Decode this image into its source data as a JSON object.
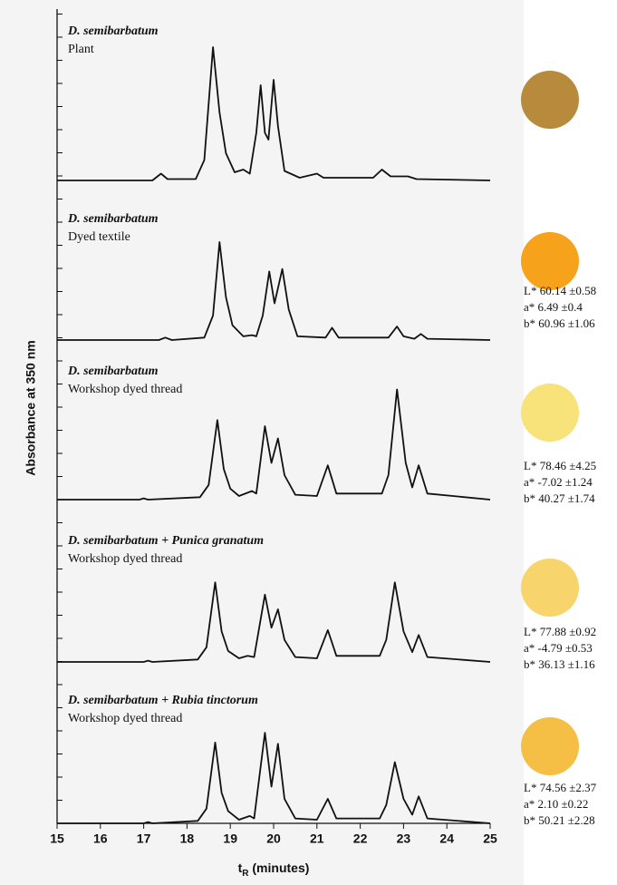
{
  "chart_data": [
    {
      "type": "line",
      "title": "D. semibarbatum",
      "subtitle": "Plant",
      "ylabel": "Absorbance at 350 nm",
      "color": "#111111",
      "swatch": "#b88a3c",
      "xlim": [
        15,
        25
      ],
      "ylim": [
        0,
        1
      ],
      "x": [
        15,
        17.2,
        17.4,
        17.55,
        18.2,
        18.4,
        18.6,
        18.75,
        18.9,
        19.1,
        19.3,
        19.45,
        19.6,
        19.7,
        19.8,
        19.88,
        20.0,
        20.1,
        20.25,
        20.6,
        21.0,
        21.15,
        22.3,
        22.5,
        22.7,
        23.1,
        23.3,
        25
      ],
      "values": [
        0,
        0,
        0.05,
        0.01,
        0.01,
        0.15,
        0.98,
        0.5,
        0.2,
        0.06,
        0.08,
        0.05,
        0.35,
        0.7,
        0.35,
        0.3,
        0.74,
        0.4,
        0.07,
        0.02,
        0.05,
        0.02,
        0.02,
        0.08,
        0.03,
        0.03,
        0.01,
        0
      ]
    },
    {
      "type": "line",
      "title": "D. semibarbatum",
      "subtitle": "Dyed textile",
      "color": "#111111",
      "swatch": "#f7a21b",
      "color_values": [
        "L* 60.14 ±0.58",
        "a* 6.49 ±0.4",
        "b* 60.96 ±1.06"
      ],
      "xlim": [
        15,
        25
      ],
      "ylim": [
        0,
        1
      ],
      "x": [
        15,
        17.35,
        17.5,
        17.65,
        18.4,
        18.6,
        18.75,
        18.9,
        19.05,
        19.3,
        19.5,
        19.6,
        19.75,
        19.9,
        20.02,
        20.2,
        20.35,
        20.55,
        21.2,
        21.35,
        21.5,
        22.65,
        22.85,
        23.0,
        23.25,
        23.4,
        23.55,
        25
      ],
      "values": [
        0,
        0,
        0.02,
        0,
        0.02,
        0.2,
        0.8,
        0.35,
        0.12,
        0.03,
        0.04,
        0.03,
        0.2,
        0.56,
        0.3,
        0.58,
        0.25,
        0.03,
        0.02,
        0.1,
        0.02,
        0.02,
        0.11,
        0.03,
        0.01,
        0.05,
        0.01,
        0
      ]
    },
    {
      "type": "line",
      "title": "D. semibarbatum",
      "subtitle": "Workshop dyed thread",
      "color": "#111111",
      "swatch": "#f8e27a",
      "color_values": [
        "L* 78.46 ±4.25",
        "a* -7.02 ±1.24",
        "b* 40.27 ±1.74"
      ],
      "xlim": [
        15,
        25
      ],
      "ylim": [
        0,
        1
      ],
      "x": [
        15,
        16.9,
        17.0,
        17.1,
        18.3,
        18.5,
        18.7,
        18.85,
        19.0,
        19.2,
        19.5,
        19.6,
        19.8,
        19.95,
        20.1,
        20.25,
        20.5,
        21.0,
        21.25,
        21.45,
        22.5,
        22.65,
        22.85,
        23.05,
        23.2,
        23.35,
        23.55,
        25
      ],
      "values": [
        0,
        0,
        0.01,
        0,
        0.02,
        0.12,
        0.65,
        0.25,
        0.09,
        0.03,
        0.07,
        0.05,
        0.6,
        0.3,
        0.5,
        0.2,
        0.04,
        0.03,
        0.28,
        0.05,
        0.05,
        0.2,
        0.9,
        0.3,
        0.1,
        0.28,
        0.05,
        0
      ]
    },
    {
      "type": "line",
      "title": "D. semibarbatum + Punica granatum",
      "subtitle": "Workshop dyed thread",
      "color": "#111111",
      "swatch": "#f7d56c",
      "color_values": [
        "L* 77.88 ±0.92",
        "a* -4.79 ±0.53",
        "b* 36.13 ±1.16"
      ],
      "xlim": [
        15,
        25
      ],
      "ylim": [
        0,
        1
      ],
      "x": [
        15,
        17.0,
        17.1,
        17.2,
        18.25,
        18.45,
        18.65,
        18.8,
        18.95,
        19.2,
        19.4,
        19.55,
        19.8,
        19.95,
        20.1,
        20.25,
        20.5,
        21.0,
        21.25,
        21.45,
        22.45,
        22.6,
        22.8,
        23.0,
        23.2,
        23.35,
        23.55,
        25
      ],
      "values": [
        0,
        0,
        0.01,
        0,
        0.02,
        0.12,
        0.65,
        0.25,
        0.09,
        0.03,
        0.05,
        0.04,
        0.55,
        0.28,
        0.43,
        0.18,
        0.04,
        0.03,
        0.26,
        0.05,
        0.05,
        0.18,
        0.65,
        0.25,
        0.08,
        0.22,
        0.04,
        0
      ]
    },
    {
      "type": "line",
      "title": "D. semibarbatum + Rubia tinctorum",
      "subtitle": "Workshop dyed thread",
      "color": "#111111",
      "swatch": "#f5bf45",
      "color_values": [
        "L* 74.56 ±2.37",
        "a* 2.10 ±0.22",
        "b* 50.21 ±2.28"
      ],
      "xlim": [
        15,
        25
      ],
      "ylim": [
        0,
        1
      ],
      "xlabel": [
        "t",
        "R",
        " (minutes)"
      ],
      "xticks": [
        15,
        16,
        17,
        18,
        19,
        20,
        21,
        22,
        23,
        24,
        25
      ],
      "x": [
        15,
        17.0,
        17.1,
        17.2,
        18.25,
        18.45,
        18.65,
        18.8,
        18.95,
        19.2,
        19.45,
        19.55,
        19.8,
        19.95,
        20.1,
        20.25,
        20.5,
        21.0,
        21.25,
        21.45,
        22.45,
        22.6,
        22.8,
        23.0,
        23.2,
        23.35,
        23.55,
        25
      ],
      "values": [
        0,
        0,
        0.01,
        0,
        0.02,
        0.12,
        0.66,
        0.25,
        0.1,
        0.03,
        0.06,
        0.04,
        0.74,
        0.3,
        0.65,
        0.2,
        0.04,
        0.03,
        0.2,
        0.04,
        0.04,
        0.15,
        0.5,
        0.2,
        0.07,
        0.22,
        0.04,
        0
      ]
    }
  ]
}
